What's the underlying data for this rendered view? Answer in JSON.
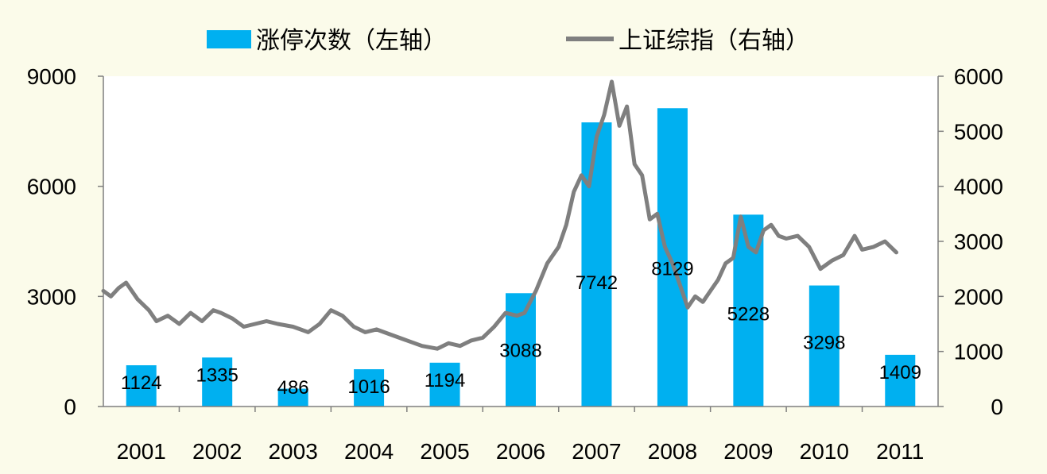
{
  "chart_data": {
    "type": "bar+line",
    "categories": [
      "2001",
      "2002",
      "2003",
      "2004",
      "2005",
      "2006",
      "2007",
      "2008",
      "2009",
      "2010",
      "2011"
    ],
    "bar_series": {
      "name": "涨停次数（左轴）",
      "axis": "left",
      "color": "#00b0f0",
      "values": [
        1124,
        1335,
        486,
        1016,
        1194,
        3088,
        7742,
        8129,
        5228,
        3298,
        1409
      ],
      "data_labels": [
        "1124",
        "1335",
        "486",
        "1016",
        "1194",
        "3088",
        "7742",
        "8129",
        "5228",
        "3298",
        "1409"
      ]
    },
    "line_series": {
      "name": "上证综指（右轴）",
      "axis": "right",
      "color": "#7f7f7f",
      "x": [
        2001.0,
        2001.1,
        2001.2,
        2001.3,
        2001.45,
        2001.6,
        2001.7,
        2001.85,
        2002.0,
        2002.15,
        2002.3,
        2002.45,
        2002.55,
        2002.7,
        2002.85,
        2003.0,
        2003.15,
        2003.3,
        2003.5,
        2003.7,
        2003.85,
        2004.0,
        2004.15,
        2004.3,
        2004.45,
        2004.6,
        2004.8,
        2005.0,
        2005.2,
        2005.4,
        2005.55,
        2005.7,
        2005.85,
        2006.0,
        2006.15,
        2006.3,
        2006.45,
        2006.55,
        2006.7,
        2006.85,
        2007.0,
        2007.1,
        2007.2,
        2007.3,
        2007.4,
        2007.5,
        2007.6,
        2007.7,
        2007.8,
        2007.9,
        2008.0,
        2008.1,
        2008.2,
        2008.3,
        2008.4,
        2008.5,
        2008.6,
        2008.7,
        2008.8,
        2008.9,
        2009.0,
        2009.1,
        2009.2,
        2009.3,
        2009.4,
        2009.5,
        2009.6,
        2009.7,
        2009.8,
        2009.9,
        2010.0,
        2010.15,
        2010.3,
        2010.45,
        2010.6,
        2010.75,
        2010.9,
        2011.0,
        2011.15,
        2011.3,
        2011.45
      ],
      "y": [
        2100,
        2000,
        2150,
        2250,
        1950,
        1750,
        1550,
        1650,
        1500,
        1700,
        1550,
        1750,
        1700,
        1600,
        1450,
        1500,
        1550,
        1500,
        1450,
        1350,
        1500,
        1750,
        1650,
        1450,
        1350,
        1400,
        1300,
        1200,
        1100,
        1050,
        1150,
        1100,
        1200,
        1250,
        1450,
        1700,
        1650,
        1700,
        2100,
        2600,
        2900,
        3300,
        3900,
        4200,
        4000,
        4900,
        5300,
        5900,
        5100,
        5450,
        4400,
        4200,
        3400,
        3500,
        2900,
        2600,
        2200,
        1800,
        2000,
        1900,
        2100,
        2300,
        2600,
        2700,
        3450,
        2900,
        2800,
        3200,
        3300,
        3100,
        3050,
        3100,
        2900,
        2500,
        2650,
        2750,
        3100,
        2850,
        2900,
        3000,
        2800
      ]
    },
    "left_axis": {
      "ylim": [
        0,
        9000
      ],
      "ticks": [
        "0",
        "3000",
        "6000",
        "9000"
      ]
    },
    "right_axis": {
      "ylim": [
        0,
        6000
      ],
      "ticks": [
        "0",
        "1000",
        "2000",
        "3000",
        "4000",
        "5000",
        "6000"
      ]
    },
    "legend": {
      "position": "top"
    },
    "grid": false
  }
}
